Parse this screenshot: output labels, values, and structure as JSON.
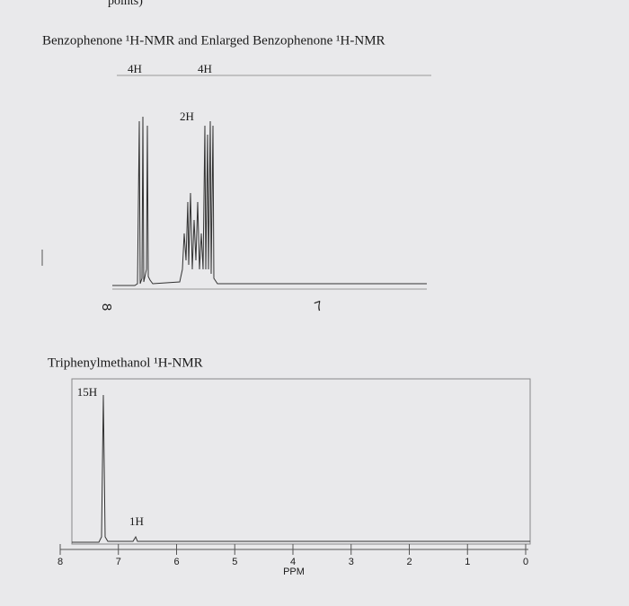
{
  "header_fragment": "points)",
  "spectrum_1": {
    "title": "Benzophenone ¹H-NMR and Enlarged Benzophenone ¹H-NMR",
    "integrals": [
      "4H",
      "4H",
      "2H"
    ],
    "axis_labels": [
      "8",
      "7"
    ]
  },
  "spectrum_2": {
    "title": "Triphenylmethanol ¹H-NMR",
    "integrals": [
      "15H",
      "1H"
    ],
    "ticks": [
      8,
      7,
      6,
      5,
      4,
      3,
      2,
      1,
      0
    ],
    "axis_title": "PPM"
  }
}
